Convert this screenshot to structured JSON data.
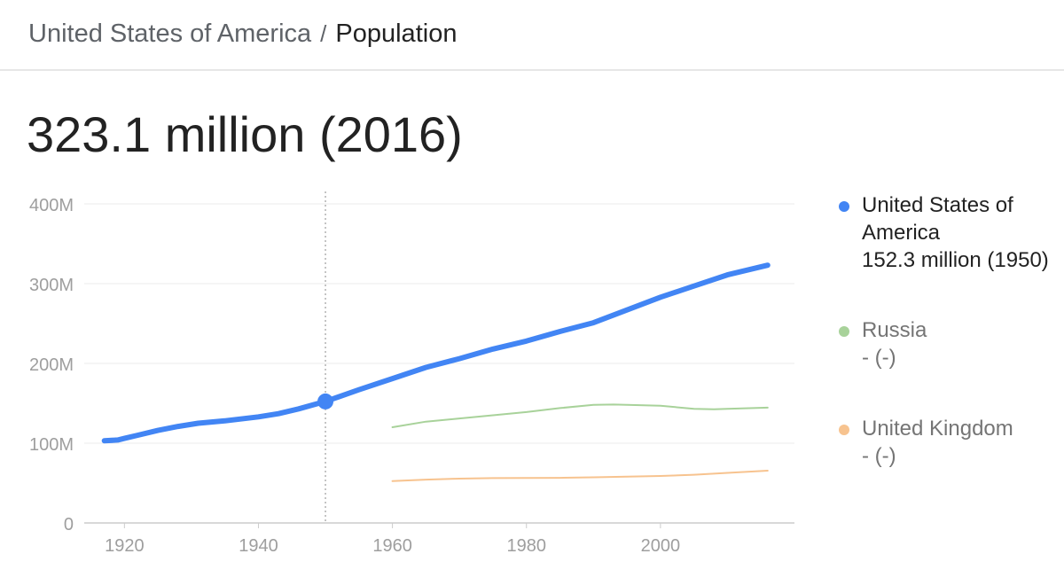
{
  "breadcrumb": {
    "country": "United States of America",
    "separator": "/",
    "current": "Population"
  },
  "headline": "323.1 million (2016)",
  "legend": [
    {
      "name": "United States of America",
      "value": "152.3 million (1950)",
      "color": "#4285f4",
      "active": true
    },
    {
      "name": "Russia",
      "value": "- (-)",
      "color": "#a8d29a",
      "active": false
    },
    {
      "name": "United Kingdom",
      "value": "- (-)",
      "color": "#f7c38f",
      "active": false
    }
  ],
  "chart_data": {
    "type": "line",
    "ylim": [
      0,
      400
    ],
    "xlim": [
      1914,
      2020
    ],
    "y_ticks": [
      0,
      100,
      200,
      300,
      400
    ],
    "y_tick_labels": [
      "0",
      "100M",
      "200M",
      "300M",
      "400M"
    ],
    "x_ticks": [
      1920,
      1940,
      1960,
      1980,
      2000
    ],
    "x_tick_labels": [
      "1920",
      "1940",
      "1960",
      "1980",
      "2000"
    ],
    "grid": true,
    "hover": {
      "x": 1950,
      "y": 152.3,
      "series": "United States of America"
    },
    "series": [
      {
        "name": "United States of America",
        "color": "#4285f4",
        "x": [
          1917,
          1919,
          1920,
          1922,
          1925,
          1928,
          1931,
          1935,
          1940,
          1943,
          1946,
          1950,
          1955,
          1960,
          1965,
          1970,
          1975,
          1980,
          1985,
          1990,
          1995,
          2000,
          2005,
          2010,
          2016
        ],
        "y": [
          103,
          104,
          106,
          110,
          116,
          121,
          125,
          128,
          133,
          137,
          143,
          152.3,
          167,
          181,
          195,
          206,
          218,
          228,
          240,
          251,
          267,
          283,
          297,
          311,
          323.1
        ]
      },
      {
        "name": "Russia",
        "color": "#a8d29a",
        "x": [
          1960,
          1965,
          1970,
          1975,
          1980,
          1985,
          1990,
          1993,
          1995,
          2000,
          2005,
          2008,
          2010,
          2016
        ],
        "y": [
          120,
          127,
          131,
          135,
          139,
          144,
          148,
          148.5,
          148,
          147,
          143,
          142.5,
          143,
          144.5
        ]
      },
      {
        "name": "United Kingdom",
        "color": "#f7c38f",
        "x": [
          1960,
          1965,
          1970,
          1975,
          1980,
          1985,
          1990,
          1995,
          2000,
          2005,
          2010,
          2016
        ],
        "y": [
          52.4,
          54.3,
          55.6,
          56.2,
          56.3,
          56.6,
          57.2,
          58,
          58.9,
          60.4,
          62.8,
          65.6
        ]
      }
    ]
  }
}
